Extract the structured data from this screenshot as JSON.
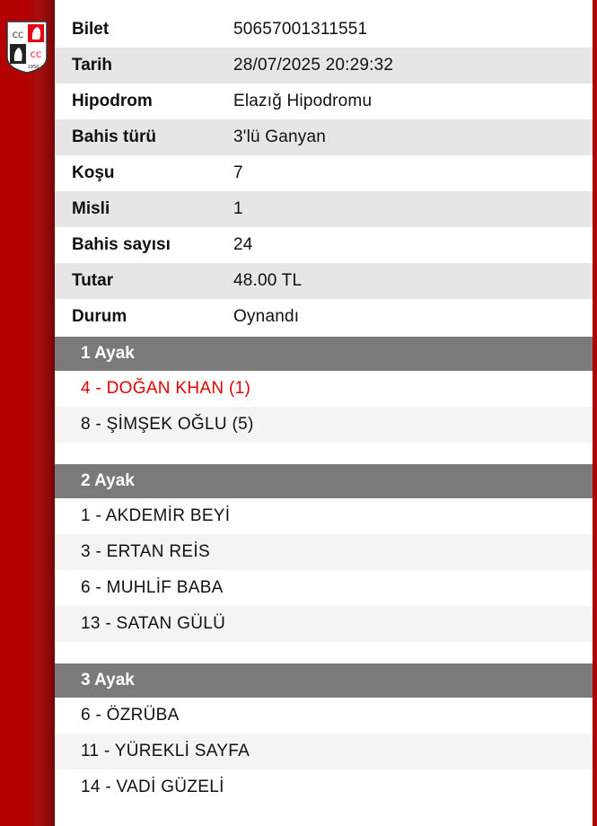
{
  "logo": {
    "text": "CC 1950"
  },
  "ticket": [
    {
      "label": "Bilet",
      "value": "50657001311551"
    },
    {
      "label": "Tarih",
      "value": "28/07/2025 20:29:32"
    },
    {
      "label": "Hipodrom",
      "value": "Elazığ Hipodromu"
    },
    {
      "label": "Bahis türü",
      "value": "3'lü Ganyan"
    },
    {
      "label": "Koşu",
      "value": "7"
    },
    {
      "label": "Misli",
      "value": "1"
    },
    {
      "label": "Bahis sayısı",
      "value": "24"
    },
    {
      "label": "Tutar",
      "value": "48.00 TL"
    },
    {
      "label": "Durum",
      "value": "Oynandı"
    }
  ],
  "legs": [
    {
      "title": "1 Ayak",
      "horses": [
        "4 - DOĞAN KHAN (1)",
        "8 - ŞİMŞEK OĞLU (5)"
      ]
    },
    {
      "title": "2 Ayak",
      "horses": [
        "1 - AKDEMİR BEYİ",
        "3 - ERTAN REİS",
        "6 - MUHLİF BABA",
        "13 - SATAN GÜLÜ"
      ]
    },
    {
      "title": "3 Ayak",
      "horses": [
        "6 - ÖZRÜBA",
        "11 - YÜREKLİ SAYFA",
        "14 - VADİ GÜZELİ"
      ]
    }
  ],
  "colors": {
    "brand": "#b30000",
    "winner": "#e00000",
    "header": "#7a7a7a"
  }
}
